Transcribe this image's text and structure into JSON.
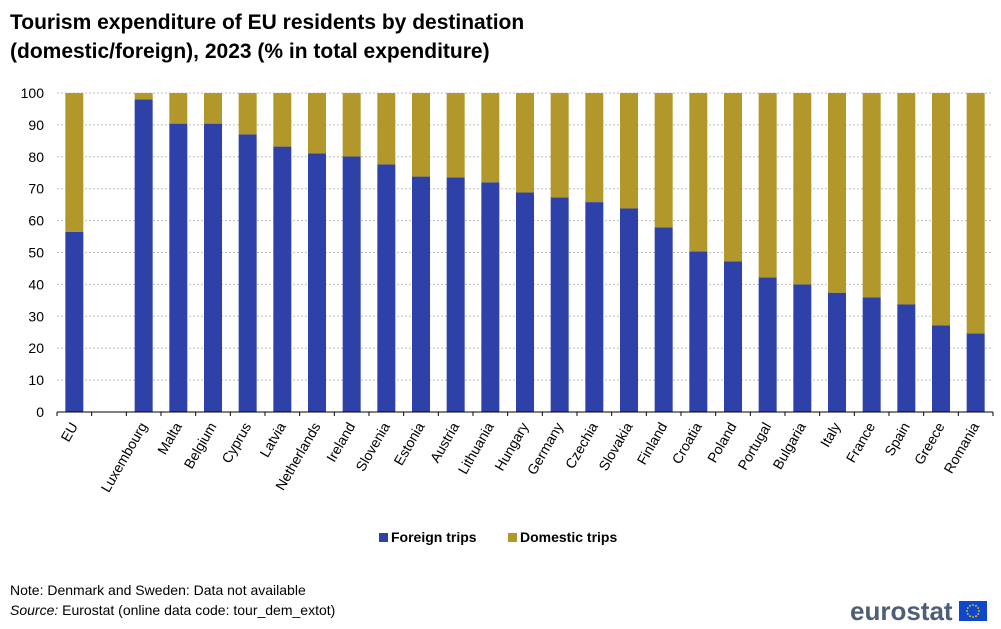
{
  "header": {
    "title_line1": "Tourism expenditure of EU residents by destination",
    "title_line2": "(domestic/foreign), 2023 (%  in total expenditure)"
  },
  "colors": {
    "foreign": "#2e41a8",
    "domestic": "#b2972a",
    "grid": "#bfbfbf",
    "axis": "#000000",
    "logo_text": "#4d5f77",
    "eu_flag": "#0e47cb",
    "eu_stars": "#ffcc00"
  },
  "chart_data": {
    "type": "bar",
    "stacked": true,
    "title": "Tourism expenditure of EU residents by destination (domestic/foreign), 2023 (%  in total expenditure)",
    "xlabel": "",
    "ylabel": "",
    "ylim": [
      0,
      100
    ],
    "yticks": [
      0,
      10,
      20,
      30,
      40,
      50,
      60,
      70,
      80,
      90,
      100
    ],
    "grid": true,
    "legend_position": "bottom-center",
    "slots": [
      "EU",
      "",
      "Luxembourg",
      "Malta",
      "Belgium",
      "Cyprus",
      "Latvia",
      "Netherlands",
      "Ireland",
      "Slovenia",
      "Estonia",
      "Austria",
      "Lithuania",
      "Hungary",
      "Germany",
      "Czechia",
      "Slovakia",
      "Finland",
      "Croatia",
      "Poland",
      "Portugal",
      "Bulgaria",
      "Italy",
      "France",
      "Spain",
      "Greece",
      "Romania"
    ],
    "categories": [
      "EU",
      "Luxembourg",
      "Malta",
      "Belgium",
      "Cyprus",
      "Latvia",
      "Netherlands",
      "Ireland",
      "Slovenia",
      "Estonia",
      "Austria",
      "Lithuania",
      "Hungary",
      "Germany",
      "Czechia",
      "Slovakia",
      "Finland",
      "Croatia",
      "Poland",
      "Portugal",
      "Bulgaria",
      "Italy",
      "France",
      "Spain",
      "Greece",
      "Romania"
    ],
    "series": [
      {
        "name": "Foreign trips",
        "color": "#2e41a8",
        "values": [
          56.5,
          98.0,
          90.4,
          90.4,
          87.0,
          83.2,
          81.1,
          80.1,
          77.6,
          73.8,
          73.5,
          72.0,
          68.8,
          67.3,
          65.8,
          63.8,
          57.9,
          50.3,
          47.2,
          42.2,
          40.0,
          37.4,
          35.9,
          33.7,
          27.2,
          24.6
        ]
      },
      {
        "name": "Domestic trips",
        "color": "#b2972a",
        "values": [
          43.5,
          2.0,
          9.6,
          9.6,
          13.0,
          16.8,
          18.9,
          19.9,
          22.4,
          26.2,
          26.5,
          28.0,
          31.2,
          32.7,
          34.2,
          36.2,
          42.1,
          49.7,
          52.8,
          57.8,
          60.0,
          62.6,
          64.1,
          66.3,
          72.8,
          75.4
        ]
      }
    ]
  },
  "legend": {
    "foreign_label": "Foreign trips",
    "domestic_label": "Domestic trips"
  },
  "footer": {
    "note": "Note: Denmark and Sweden: Data not available",
    "source_word": "Source:",
    "source_text": " Eurostat (online data code: tour_dem_extot)"
  },
  "logo": {
    "wordmark": "eurostat",
    "flag_icon": "eu-flag-icon"
  }
}
